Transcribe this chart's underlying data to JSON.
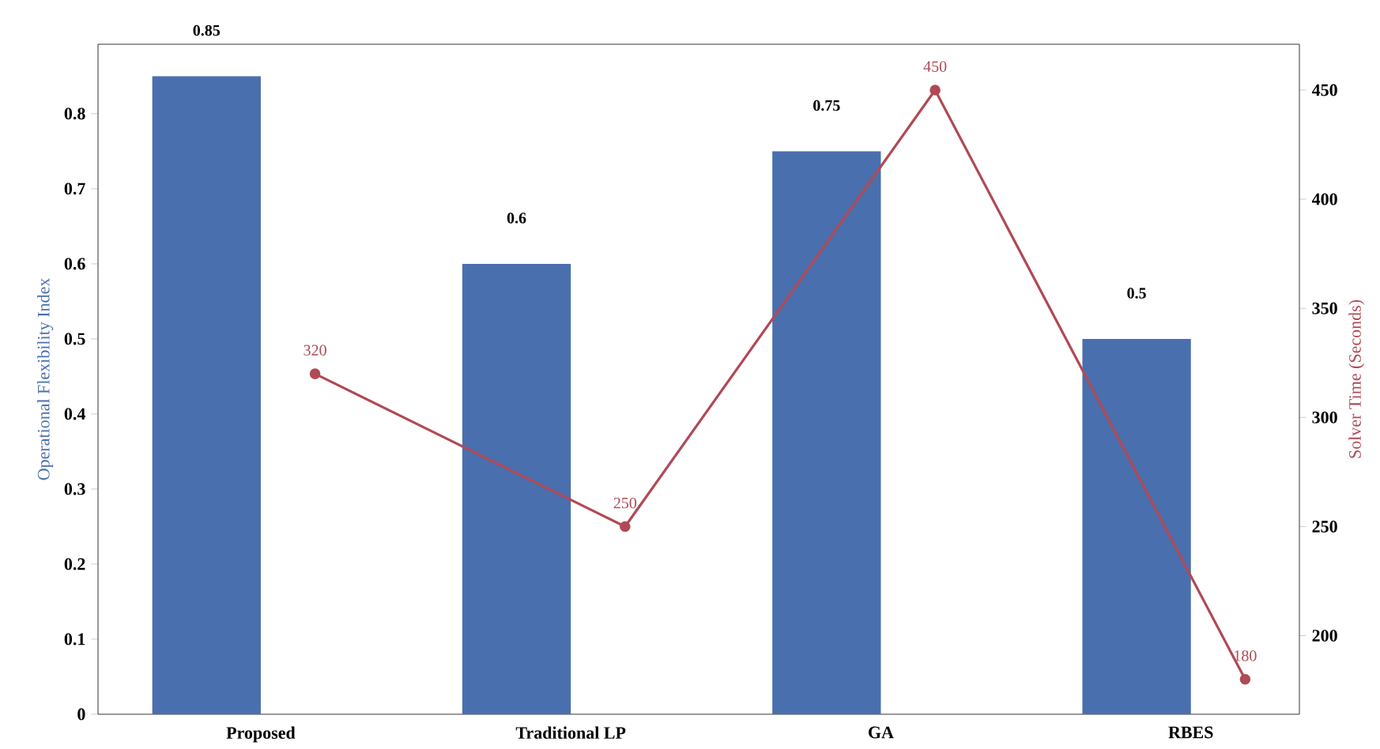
{
  "chart_data": {
    "type": "bar",
    "categories": [
      "Proposed",
      "Traditional LP",
      "GA",
      "RBES"
    ],
    "ylabel": "Operational Flexibility Index",
    "y2label": "Solver Time (Seconds)",
    "ylim": [
      0,
      0.8925
    ],
    "yticks": [
      0,
      0.1,
      0.2,
      0.3,
      0.4,
      0.5,
      0.6,
      0.7,
      0.8
    ],
    "y2lim": [
      164,
      471
    ],
    "y2ticks": [
      200,
      250,
      300,
      350,
      400,
      450
    ],
    "data_labels": true,
    "grid": false,
    "series": [
      {
        "color": "#4a6fae",
        "values": [
          0.85,
          0.6,
          0.75,
          0.5
        ]
      },
      {
        "type": "line",
        "axis": "y2",
        "color": "#b04a55",
        "marker": "circle",
        "values": [
          320,
          250,
          450,
          180
        ]
      }
    ]
  }
}
